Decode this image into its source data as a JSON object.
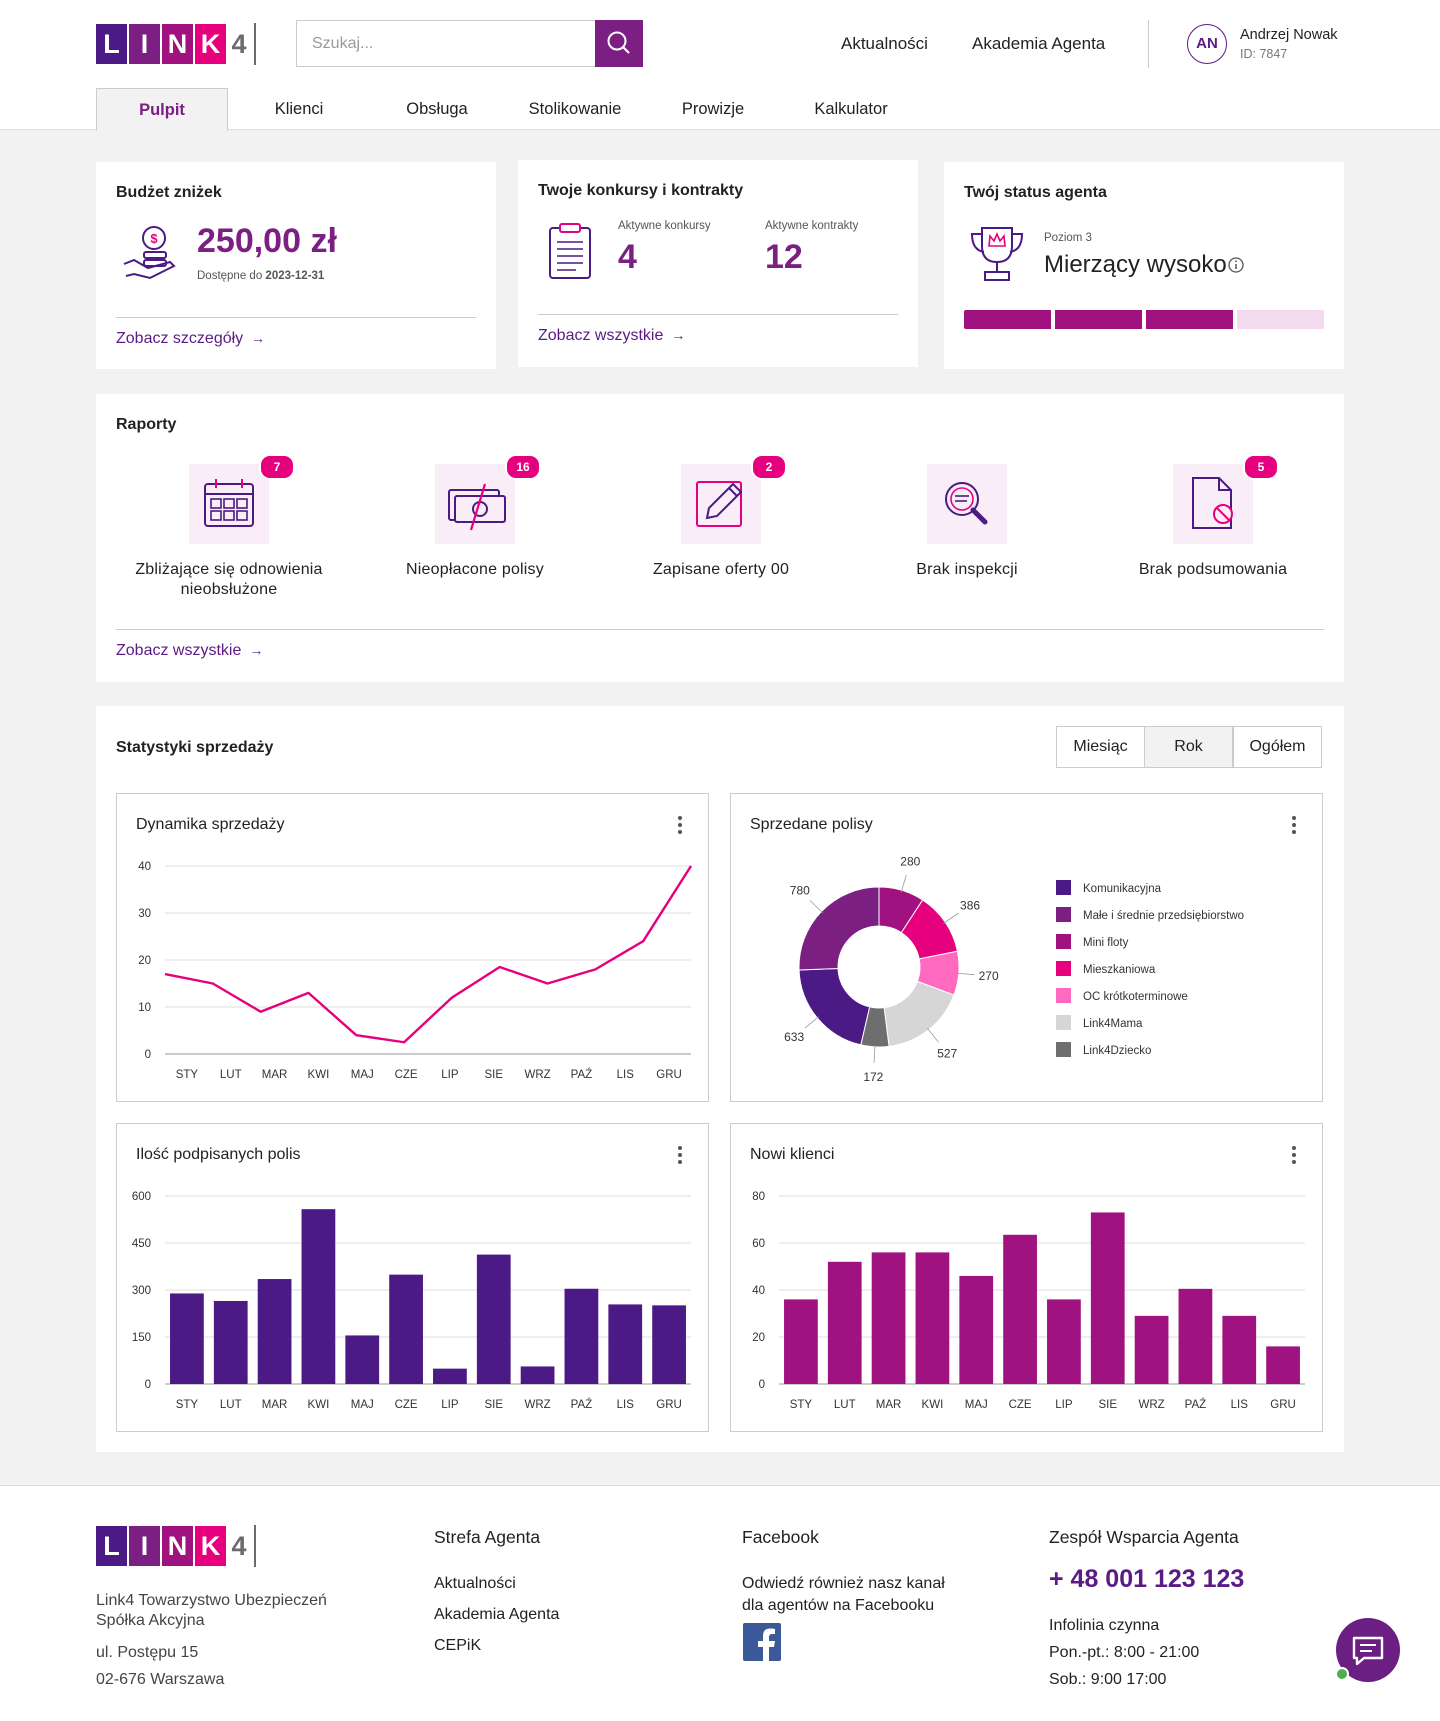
{
  "header": {
    "logo": [
      "L",
      "I",
      "N",
      "K",
      "4"
    ],
    "search_placeholder": "Szukaj...",
    "links": [
      "Aktualności",
      "Akademia Agenta"
    ],
    "user": {
      "initials": "AN",
      "name": "Andrzej Nowak",
      "id": "ID: 7847"
    }
  },
  "tabs": [
    "Pulpit",
    "Klienci",
    "Obsługa",
    "Stolikowanie",
    "Prowizje",
    "Kalkulator"
  ],
  "cards": {
    "budget": {
      "title": "Budżet zniżek",
      "amount": "250,00 zł",
      "available_label": "Dostępne do",
      "available_date": "2023-12-31",
      "link": "Zobacz szczegóły"
    },
    "contests": {
      "title": "Twoje konkursy i kontrakty",
      "items": [
        {
          "label": "Aktywne konkursy",
          "value": 4
        },
        {
          "label": "Aktywne kontrakty",
          "value": 12
        }
      ],
      "link": "Zobacz wszystkie"
    },
    "status": {
      "title": "Twój status agenta",
      "level": "Poziom 3",
      "name": "Mierzący wysoko"
    }
  },
  "reports": {
    "title": "Raporty",
    "items": [
      {
        "badge": 7,
        "label": "Zbliżające się odnowienia nieobsłużone"
      },
      {
        "badge": 16,
        "label": "Nieopłacone polisy"
      },
      {
        "badge": 2,
        "label": "Zapisane oferty 00"
      },
      {
        "label": "Brak inspekcji"
      },
      {
        "badge": 5,
        "label": "Brak podsumowania"
      }
    ],
    "link": "Zobacz wszystkie"
  },
  "stats": {
    "title": "Statystyki sprzedaży",
    "periods": [
      "Miesiąc",
      "Rok",
      "Ogółem"
    ]
  },
  "chart_data": [
    {
      "type": "line",
      "title": "Dynamika sprzedaży",
      "categories": [
        "STY",
        "LUT",
        "MAR",
        "KWI",
        "MAJ",
        "CZE",
        "LIP",
        "SIE",
        "WRZ",
        "PAŹ",
        "LIS",
        "GRU"
      ],
      "values": [
        17,
        15,
        9,
        13,
        4,
        2.5,
        12,
        18.5,
        15,
        18,
        24,
        40
      ],
      "color": "#e6007e",
      "ylim": [
        0,
        40
      ],
      "yticks": [
        0,
        10,
        20,
        30,
        40
      ],
      "grid": true
    },
    {
      "type": "pie",
      "title": "Sprzedane polisy",
      "categories": [
        "Komunikacyjna",
        "Małe i średnie przedsiębiorstwo",
        "Mini floty",
        "Mieszkaniowa",
        "OC krótkoterminowe",
        "Link4Mama",
        "Link4Dziecko"
      ],
      "values": [
        633,
        780,
        280,
        386,
        270,
        527,
        172
      ],
      "colors": [
        "#4b1a84",
        "#7b1f82",
        "#a0127f",
        "#e6007e",
        "#ff69c0",
        "#d6d6d6",
        "#6e6e6e"
      ]
    },
    {
      "type": "bar",
      "title": "Ilość podpisanych polis",
      "categories": [
        "STY",
        "LUT",
        "MAR",
        "KWI",
        "MAJ",
        "CZE",
        "LIP",
        "SIE",
        "WRZ",
        "PAŹ",
        "LIS",
        "GRU"
      ],
      "values": [
        289,
        265,
        335,
        558,
        155,
        349,
        49,
        413,
        56,
        304,
        254,
        251
      ],
      "color": "#4b1a84",
      "ylim": [
        0,
        600
      ],
      "yticks": [
        0,
        150,
        300,
        450,
        600
      ],
      "grid": true
    },
    {
      "type": "bar",
      "title": "Nowi klienci",
      "categories": [
        "STY",
        "LUT",
        "MAR",
        "KWI",
        "MAJ",
        "CZE",
        "LIP",
        "SIE",
        "WRZ",
        "PAŹ",
        "LIS",
        "GRU"
      ],
      "values": [
        36,
        52,
        56,
        56,
        46,
        63.5,
        36,
        73,
        29,
        40.5,
        29,
        16
      ],
      "color": "#a0127f",
      "ylim": [
        0,
        80
      ],
      "yticks": [
        0,
        20,
        40,
        60,
        80
      ],
      "grid": true
    }
  ],
  "footer": {
    "address": [
      "Link4 Towarzystwo Ubezpieczeń Spółka Akcyjna",
      "ul. Postępu 15",
      "02-676 Warszawa"
    ],
    "zone": {
      "title": "Strefa Agenta",
      "links": [
        "Aktualności",
        "Akademia Agenta",
        "CEPiK"
      ]
    },
    "facebook": {
      "title": "Facebook",
      "text": "Odwiedź również nasz kanał dla agentów na Facebooku"
    },
    "support": {
      "title": "Zespół Wsparcia Agenta",
      "phone": "+ 48 001 123 123",
      "hours_title": "Infolinia czynna",
      "hours": [
        "Pon.-pt.: 8:00 - 21:00",
        "Sob.: 9:00 17:00"
      ]
    }
  }
}
